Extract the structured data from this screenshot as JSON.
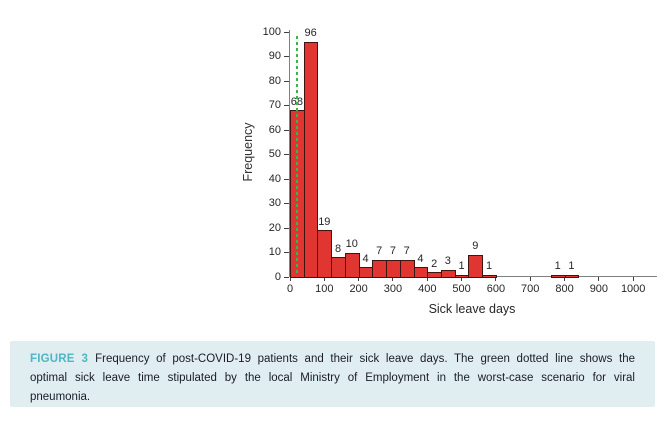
{
  "chart_data": {
    "type": "bar",
    "subtype": "histogram",
    "title": "",
    "xlabel": "Sick leave days",
    "ylabel": "Frequency",
    "xlim": [
      0,
      1070
    ],
    "ylim": [
      0,
      100
    ],
    "x_ticks": [
      0,
      100,
      200,
      300,
      400,
      500,
      600,
      700,
      800,
      900,
      1000
    ],
    "y_ticks": [
      0,
      10,
      20,
      30,
      40,
      50,
      60,
      70,
      80,
      90,
      100
    ],
    "grid": false,
    "legend": false,
    "bar_value_labels_shown": true,
    "bin_width": 40,
    "bins": [
      {
        "start": 0,
        "value": 68
      },
      {
        "start": 40,
        "value": 96
      },
      {
        "start": 80,
        "value": 19
      },
      {
        "start": 120,
        "value": 8
      },
      {
        "start": 160,
        "value": 10
      },
      {
        "start": 200,
        "value": 4
      },
      {
        "start": 240,
        "value": 7
      },
      {
        "start": 280,
        "value": 7
      },
      {
        "start": 320,
        "value": 7
      },
      {
        "start": 360,
        "value": 4
      },
      {
        "start": 400,
        "value": 2
      },
      {
        "start": 440,
        "value": 3
      },
      {
        "start": 480,
        "value": 1
      },
      {
        "start": 520,
        "value": 9
      },
      {
        "start": 560,
        "value": 1
      },
      {
        "start": 760,
        "value": 1
      },
      {
        "start": 800,
        "value": 1
      }
    ],
    "reference_line": {
      "x": 21,
      "style": "dashed",
      "orientation": "vertical"
    },
    "colors": {
      "bar_fill": "#e03531",
      "bar_border": "#401511",
      "axis": "#808080",
      "tick": "#404040",
      "text": "#262626",
      "reference_line": "#3cb44b"
    }
  },
  "caption": {
    "label": "FIGURE 3",
    "line1": "Frequency of post-COVID-19 patients and their sick leave days. The green dotted line shows the",
    "line2": "optimal sick leave time stipulated by the local Ministry of Employment in the worst-case scenario for viral",
    "line3": "pneumonia.",
    "full_text": "FIGURE 3 Frequency of post-COVID-19 patients and their sick leave days. The green dotted line shows the optimal sick leave time stipulated by the local Ministry of Employment in the worst-case scenario for viral pneumonia.",
    "colors": {
      "background": "#e0eef2",
      "label": "#4fb6c5",
      "text": "#1b1b26"
    }
  }
}
